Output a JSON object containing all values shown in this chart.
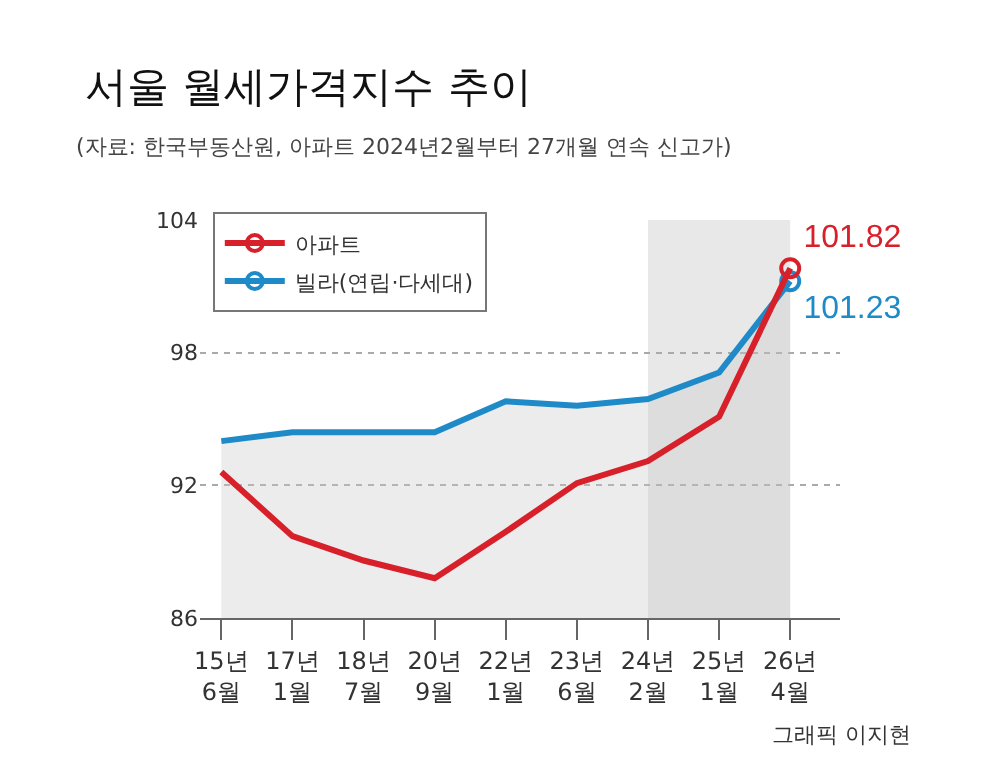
{
  "chart_data": {
    "type": "line",
    "title": "서울 월세가격지수 추이",
    "subtitle": "(자료: 한국부동산원, 아파트 2024년2월부터 27개월 연속 신고가)",
    "categories": [
      "15년\n6월",
      "17년\n1월",
      "18년\n7월",
      "20년\n9월",
      "22년\n1월",
      "23년\n6월",
      "24년\n2월",
      "25년\n1월",
      "26년\n4월"
    ],
    "series": [
      {
        "name": "아파트",
        "color": "#d7202a",
        "values": [
          92.6,
          89.7,
          88.6,
          87.8,
          89.9,
          92.1,
          93.1,
          95.1,
          101.82
        ],
        "value_labels": [
          null,
          null,
          null,
          null,
          null,
          null,
          null,
          null,
          "101.82"
        ]
      },
      {
        "name": "빌라(연립·다세대)",
        "type": "area",
        "color": "#1f8ac8",
        "values": [
          94.0,
          94.4,
          94.4,
          94.4,
          95.8,
          95.6,
          95.9,
          97.1,
          101.23
        ],
        "value_labels": [
          null,
          null,
          null,
          null,
          null,
          null,
          null,
          null,
          "101.23"
        ]
      }
    ],
    "bands": [
      {
        "axis": "x",
        "from": "24년\n2월",
        "to": "26년\n4월",
        "color": "#d6d6d6"
      }
    ],
    "ylim": [
      86,
      104
    ],
    "yticks": [
      86,
      92,
      98,
      104
    ],
    "grid": "y",
    "legend": "top left",
    "annotations": [
      "그래픽 이지현"
    ]
  }
}
